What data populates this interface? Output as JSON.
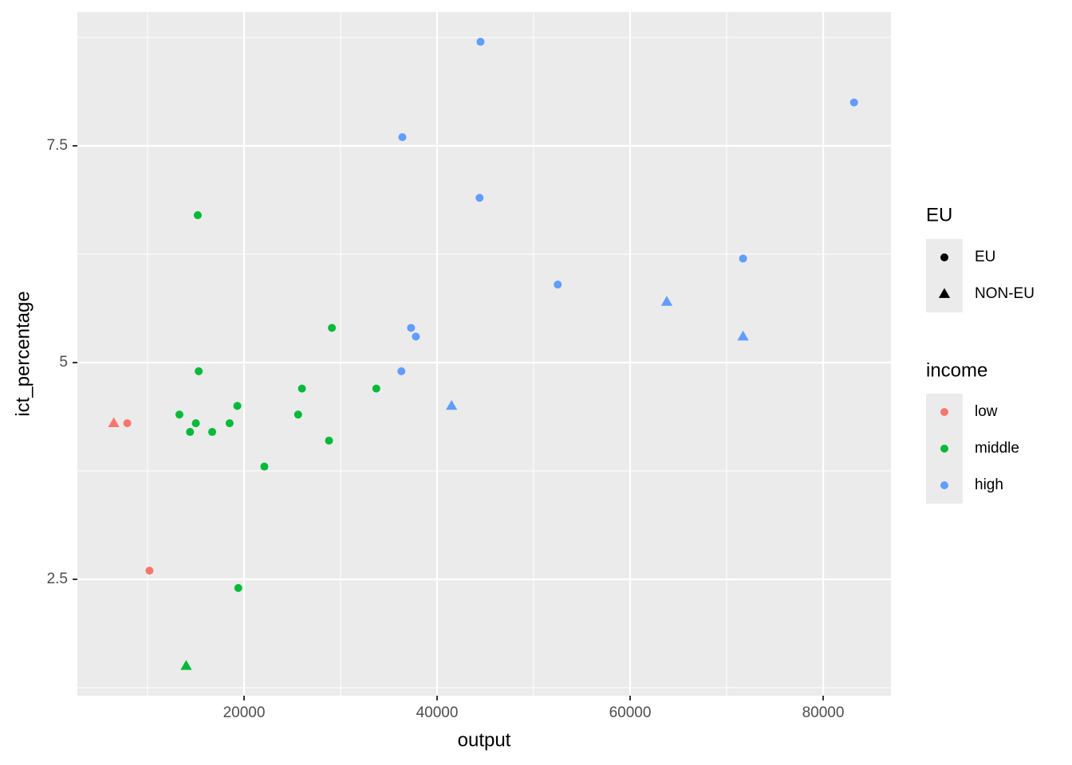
{
  "chart_data": {
    "type": "scatter",
    "x_label": "output",
    "y_label": "ict_percentage",
    "xlim": [
      2727,
      87025
    ],
    "ylim": [
      1.158,
      9.044
    ],
    "xticks": [
      20000,
      40000,
      60000,
      80000
    ],
    "yticks": [
      2.5,
      5.0,
      7.5
    ],
    "x_minor_ticks": [
      10000,
      30000,
      50000,
      70000
    ],
    "y_minor_ticks": [
      1.25,
      3.75,
      6.25,
      8.75
    ],
    "grid": true,
    "shape_legend": {
      "title": "EU",
      "entries": [
        "EU",
        "NON-EU"
      ]
    },
    "color_legend_title": "income",
    "series": [
      {
        "name": "low",
        "color": "#F8766D",
        "x": [
          6500,
          7900,
          10200
        ],
        "values": [
          4.3,
          4.3,
          2.6
        ],
        "eu": [
          "NON-EU",
          "EU",
          "EU"
        ]
      },
      {
        "name": "middle",
        "color": "#00BA38",
        "x": [
          15200,
          15300,
          13300,
          15000,
          14400,
          16700,
          18500,
          19300,
          22100,
          19400,
          14000,
          25600,
          26000,
          28800,
          29100,
          33700
        ],
        "values": [
          6.7,
          4.9,
          4.4,
          4.3,
          4.2,
          4.2,
          4.3,
          4.5,
          3.8,
          2.4,
          1.5,
          4.4,
          4.7,
          4.1,
          5.4,
          4.7
        ],
        "eu": [
          "EU",
          "EU",
          "EU",
          "EU",
          "EU",
          "EU",
          "EU",
          "EU",
          "EU",
          "EU",
          "NON-EU",
          "EU",
          "EU",
          "EU",
          "EU",
          "EU"
        ]
      },
      {
        "name": "high",
        "color": "#619CFF",
        "x": [
          44500,
          83200,
          36400,
          44400,
          71700,
          52500,
          63800,
          37300,
          37800,
          71700,
          36300,
          41500
        ],
        "values": [
          8.7,
          8.0,
          7.6,
          6.9,
          6.2,
          5.9,
          5.7,
          5.4,
          5.3,
          5.3,
          4.9,
          4.5
        ],
        "eu": [
          "EU",
          "EU",
          "EU",
          "EU",
          "EU",
          "EU",
          "NON-EU",
          "EU",
          "EU",
          "NON-EU",
          "EU",
          "NON-EU"
        ]
      }
    ]
  }
}
